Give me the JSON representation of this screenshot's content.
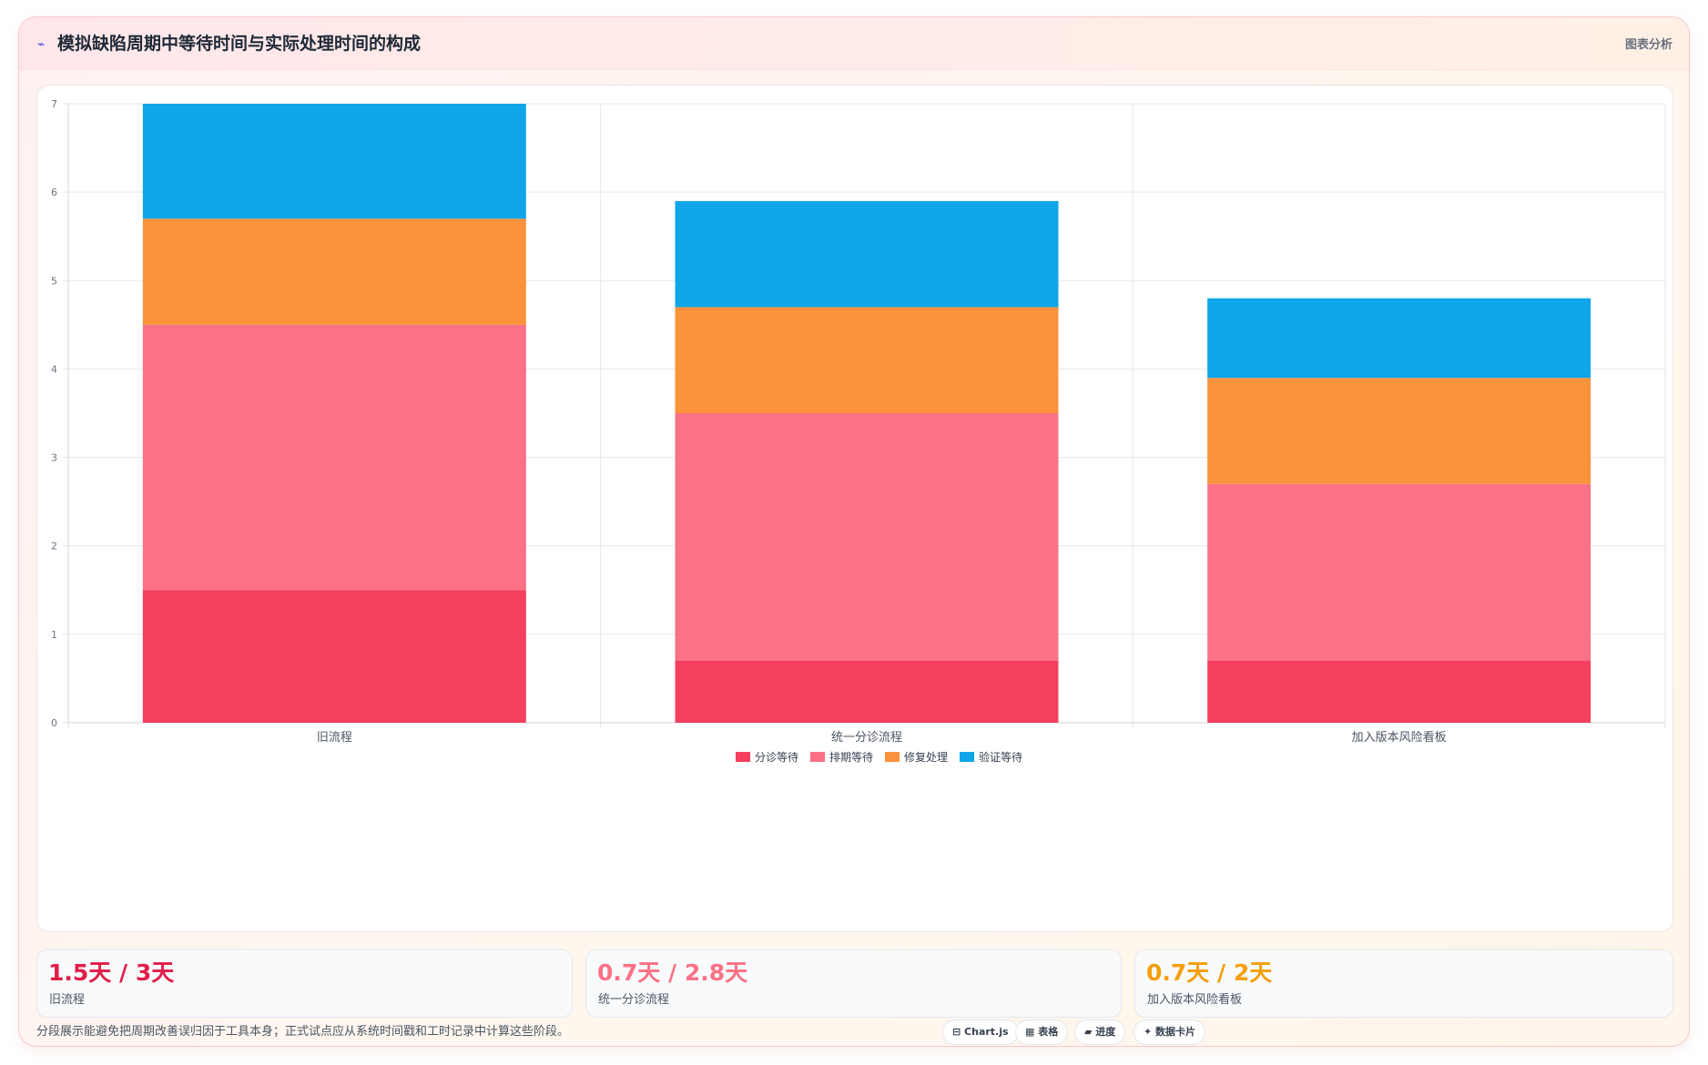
{
  "header": {
    "icon": "chart-icon",
    "title": "模拟缺陷周期中等待时间与实际处理时间的构成",
    "tag": "图表分析"
  },
  "chart_data": {
    "type": "bar",
    "stacked": true,
    "categories": [
      "旧流程",
      "统一分诊流程",
      "加入版本风险看板"
    ],
    "series": [
      {
        "name": "分诊等待",
        "color": "#f43f5e",
        "values": [
          1.5,
          0.7,
          0.7
        ]
      },
      {
        "name": "排期等待",
        "color": "#fb7185",
        "values": [
          3.0,
          2.8,
          2.0
        ]
      },
      {
        "name": "修复处理",
        "color": "#fb923c",
        "values": [
          1.2,
          1.2,
          1.2
        ]
      },
      {
        "name": "验证等待",
        "color": "#0ea5e9",
        "values": [
          1.3,
          1.2,
          0.9
        ]
      }
    ],
    "ylim": [
      0,
      7
    ],
    "yticks": [
      0,
      1,
      2,
      3,
      4,
      5,
      6,
      7
    ],
    "grid": true,
    "legend_position": "bottom",
    "title": "",
    "xlabel": "",
    "ylabel": ""
  },
  "stats": [
    {
      "value": "1.5天 / 3天",
      "label": "旧流程",
      "color": "#e11d48"
    },
    {
      "value": "0.7天 / 2.8天",
      "label": "统一分诊流程",
      "color": "#fb7185"
    },
    {
      "value": "0.7天 / 2天",
      "label": "加入版本风险看板",
      "color": "#f59e0b"
    }
  ],
  "footnote": "分段展示能避免把周期改善误归因于工具本身；正式试点应从系统时间戳和工时记录中计算这些阶段。",
  "chips": [
    {
      "icon": "chart-icon",
      "label": "Chart.js"
    },
    {
      "icon": "table-icon",
      "label": "表格"
    },
    {
      "icon": "progress-icon",
      "label": "进度"
    },
    {
      "icon": "sparkle-icon",
      "label": "数据卡片"
    }
  ]
}
